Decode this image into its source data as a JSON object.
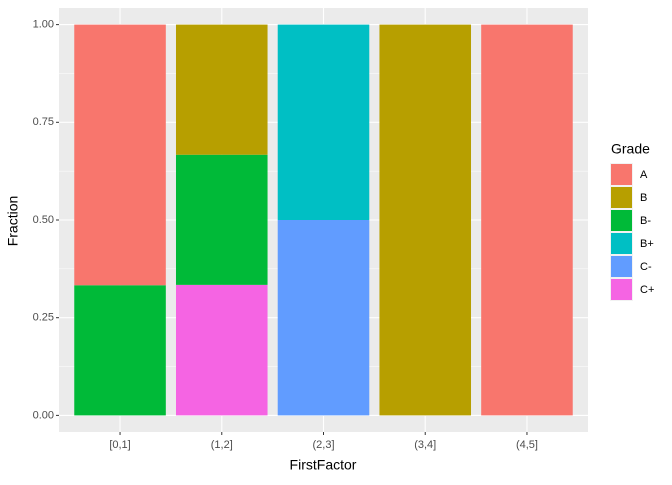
{
  "chart_data": {
    "type": "stacked_bar",
    "x_label": "FirstFactor",
    "y_label": "Fraction",
    "categories": [
      "[0,1]",
      "(1,2]",
      "(2,3]",
      "(3,4]",
      "(4,5]"
    ],
    "legend_title": "Grade",
    "legend_position": "right",
    "series": [
      {
        "name": "A",
        "color": "#F8766D",
        "values": [
          0.667,
          0,
          0,
          0,
          1
        ]
      },
      {
        "name": "B",
        "color": "#B79F00",
        "values": [
          0,
          0.333,
          0,
          1,
          0
        ]
      },
      {
        "name": "B-",
        "color": "#00BA38",
        "values": [
          0.333,
          0.333,
          0,
          0,
          0
        ]
      },
      {
        "name": "B+",
        "color": "#00BFC4",
        "values": [
          0,
          0,
          0.5,
          0,
          0
        ]
      },
      {
        "name": "C-",
        "color": "#619CFF",
        "values": [
          0,
          0,
          0.5,
          0,
          0
        ]
      },
      {
        "name": "C+",
        "color": "#F564E3",
        "values": [
          0,
          0.334,
          0,
          0,
          0
        ]
      }
    ],
    "ylim": [
      -0.0425,
      1.0425
    ],
    "yticks": [
      {
        "value": 0,
        "label": "0.00"
      },
      {
        "value": 0.25,
        "label": "0.25"
      },
      {
        "value": 0.5,
        "label": "0.50"
      },
      {
        "value": 0.75,
        "label": "0.75"
      },
      {
        "value": 1,
        "label": "1.00"
      }
    ],
    "grid": true
  }
}
